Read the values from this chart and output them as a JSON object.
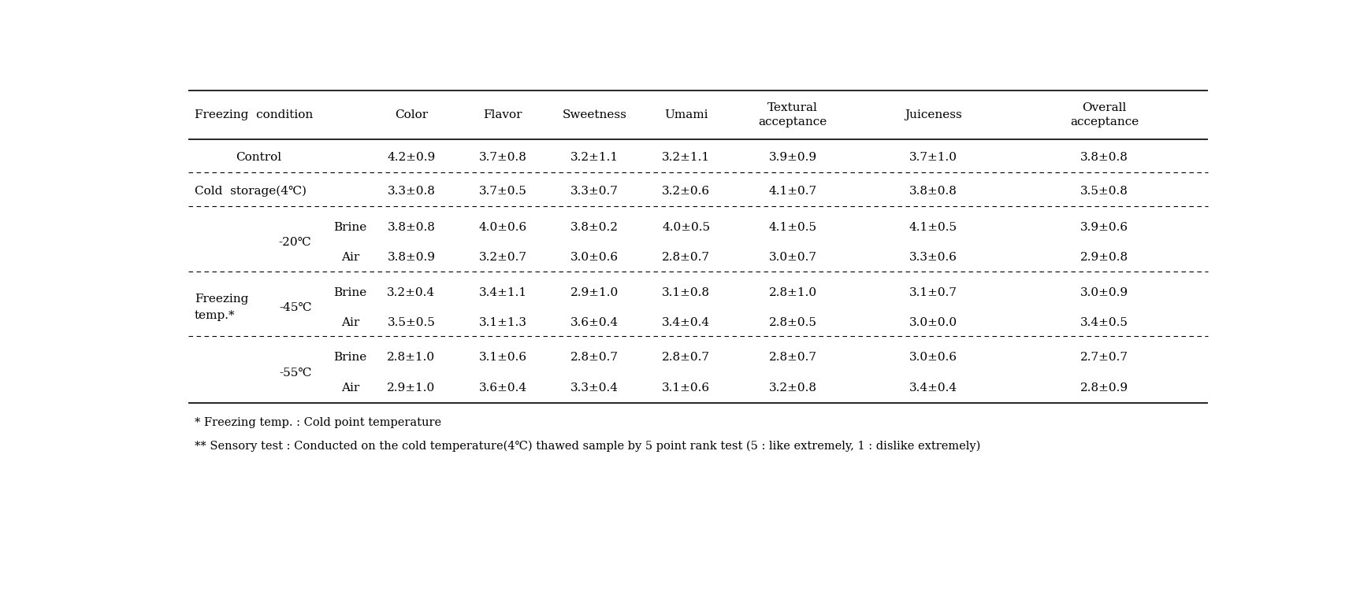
{
  "col_headers": [
    "Color",
    "Flavor",
    "Sweetness",
    "Umami",
    "Textural\nacceptance",
    "Juiceness",
    "Overall\nacceptance"
  ],
  "footnotes": [
    "* Freezing temp. : Cold point temperature",
    "** Sensory test : Conducted on the cold temperature(4℃) thawed sample by 5 point rank test (5 : like extremely, 1 : dislike extremely)"
  ],
  "rows": [
    {
      "col1": "Control",
      "col2": "",
      "col3": "",
      "data": [
        "4.2±0.9",
        "3.7±0.8",
        "3.2±1.1",
        "3.2±1.1",
        "3.9±0.9",
        "3.7±1.0",
        "3.8±0.8"
      ]
    },
    {
      "col1": "Cold  storage(4℃)",
      "col2": "",
      "col3": "",
      "data": [
        "3.3±0.8",
        "3.7±0.5",
        "3.3±0.7",
        "3.2±0.6",
        "4.1±0.7",
        "3.8±0.8",
        "3.5±0.8"
      ]
    },
    {
      "col1": "",
      "col2": "-20℃",
      "col3": "Brine",
      "data": [
        "3.8±0.8",
        "4.0±0.6",
        "3.8±0.2",
        "4.0±0.5",
        "4.1±0.5",
        "4.1±0.5",
        "3.9±0.6"
      ]
    },
    {
      "col1": "",
      "col2": "",
      "col3": "Air",
      "data": [
        "3.8±0.9",
        "3.2±0.7",
        "3.0±0.6",
        "2.8±0.7",
        "3.0±0.7",
        "3.3±0.6",
        "2.9±0.8"
      ]
    },
    {
      "col1": "",
      "col2": "-45℃",
      "col3": "Brine",
      "data": [
        "3.2±0.4",
        "3.4±1.1",
        "2.9±1.0",
        "3.1±0.8",
        "2.8±1.0",
        "3.1±0.7",
        "3.0±0.9"
      ]
    },
    {
      "col1": "",
      "col2": "",
      "col3": "Air",
      "data": [
        "3.5±0.5",
        "3.1±1.3",
        "3.6±0.4",
        "3.4±0.4",
        "2.8±0.5",
        "3.0±0.0",
        "3.4±0.5"
      ]
    },
    {
      "col1": "",
      "col2": "-55℃",
      "col3": "Brine",
      "data": [
        "2.8±1.0",
        "3.1±0.6",
        "2.8±0.7",
        "2.8±0.7",
        "2.8±0.7",
        "3.0±0.6",
        "2.7±0.7"
      ]
    },
    {
      "col1": "",
      "col2": "",
      "col3": "Air",
      "data": [
        "2.9±1.0",
        "3.6±0.4",
        "3.3±0.4",
        "3.1±0.6",
        "3.2±0.8",
        "3.4±0.4",
        "2.8±0.9"
      ]
    }
  ],
  "background_color": "#ffffff",
  "text_color": "#000000",
  "font_size": 11,
  "header_font_size": 11
}
